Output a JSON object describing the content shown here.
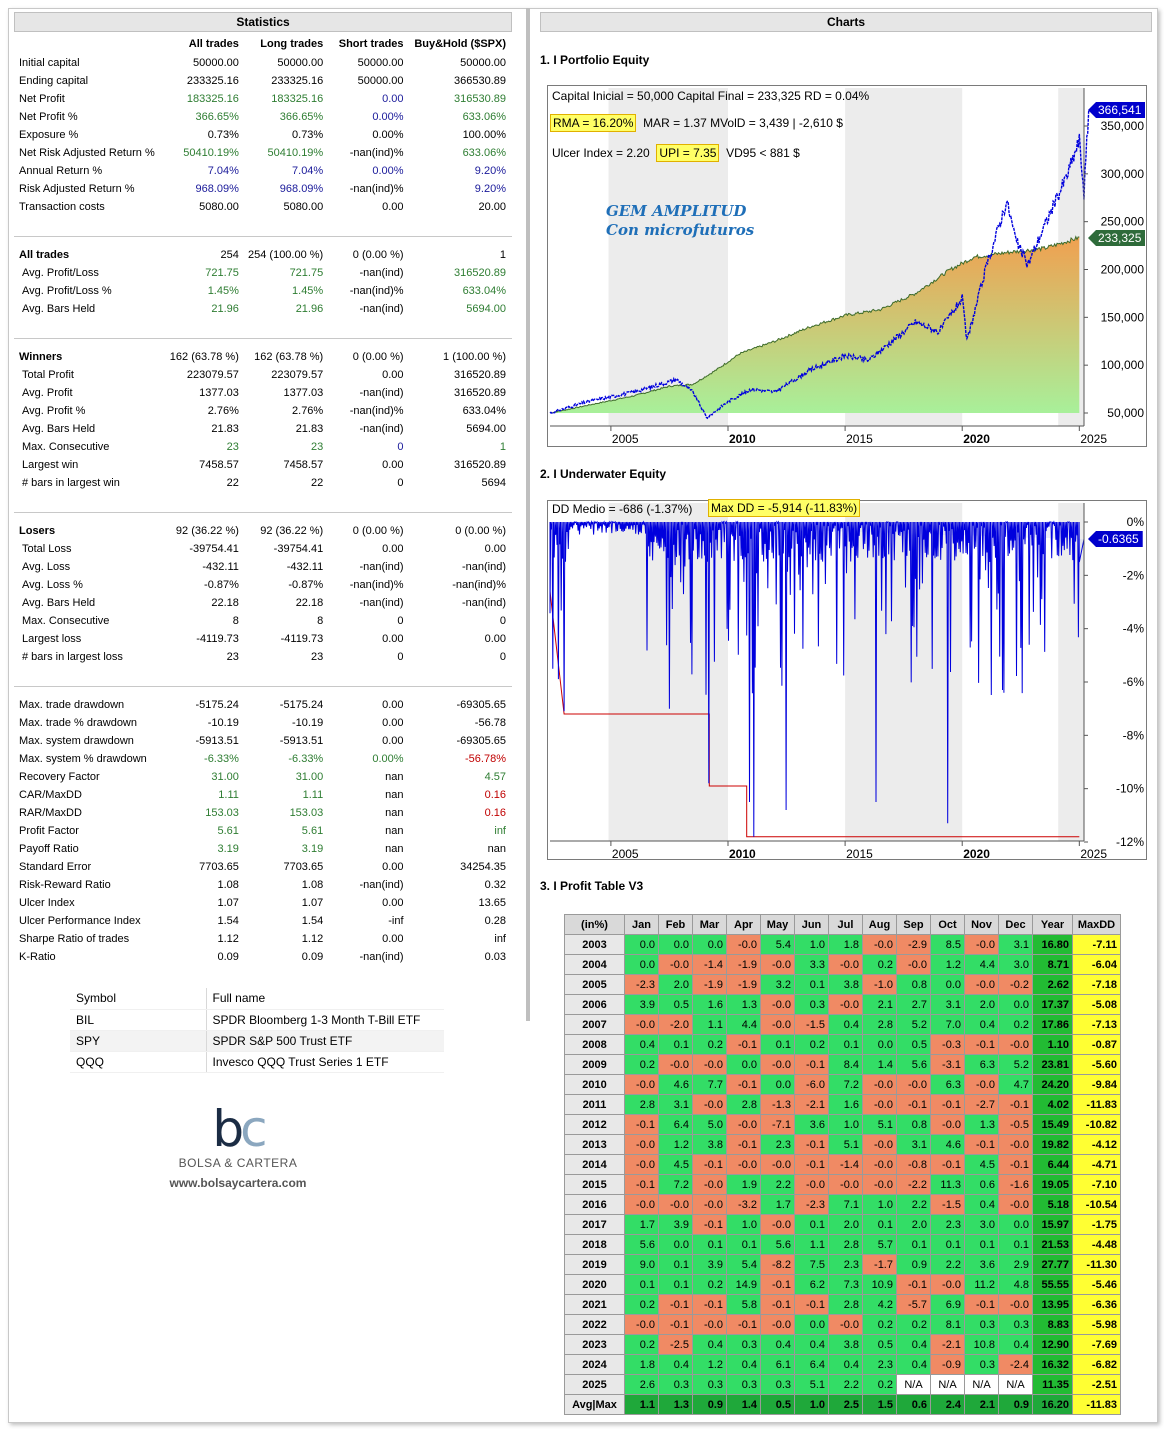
{
  "stats": {
    "title": "Statistics",
    "columns": [
      "All trades",
      "Long trades",
      "Short trades",
      "Buy&Hold ($SPX)"
    ],
    "block1": [
      {
        "label": "Initial capital",
        "v": [
          "50000.00",
          "50000.00",
          "50000.00",
          "50000.00"
        ],
        "c": [
          "",
          "",
          "",
          ""
        ]
      },
      {
        "label": "Ending capital",
        "v": [
          "233325.16",
          "233325.16",
          "50000.00",
          "366530.89"
        ],
        "c": [
          "",
          "",
          "",
          ""
        ]
      },
      {
        "label": "Net Profit",
        "v": [
          "183325.16",
          "183325.16",
          "0.00",
          "316530.89"
        ],
        "c": [
          "g",
          "g",
          "b",
          "g"
        ]
      },
      {
        "label": "Net Profit %",
        "v": [
          "366.65%",
          "366.65%",
          "0.00%",
          "633.06%"
        ],
        "c": [
          "g",
          "g",
          "b",
          "g"
        ]
      },
      {
        "label": "Exposure %",
        "v": [
          "0.73%",
          "0.73%",
          "0.00%",
          "100.00%"
        ],
        "c": [
          "",
          "",
          "",
          ""
        ]
      },
      {
        "label": "Net Risk Adjusted Return %",
        "v": [
          "50410.19%",
          "50410.19%",
          "-nan(ind)%",
          "633.06%"
        ],
        "c": [
          "g",
          "g",
          "",
          "g"
        ]
      },
      {
        "label": "Annual Return %",
        "v": [
          "7.04%",
          "7.04%",
          "0.00%",
          "9.20%"
        ],
        "c": [
          "b",
          "b",
          "b",
          "b"
        ]
      },
      {
        "label": "Risk Adjusted Return %",
        "v": [
          "968.09%",
          "968.09%",
          "-nan(ind)%",
          "9.20%"
        ],
        "c": [
          "b",
          "b",
          "",
          "b"
        ]
      },
      {
        "label": "Transaction costs",
        "v": [
          "5080.00",
          "5080.00",
          "0.00",
          "20.00"
        ],
        "c": [
          "",
          "",
          "",
          ""
        ]
      }
    ],
    "block2": [
      {
        "label": "All trades",
        "v": [
          "254",
          "254 (100.00 %)",
          "0 (0.00 %)",
          "1"
        ],
        "c": [
          "",
          "",
          "",
          ""
        ],
        "sec": true
      },
      {
        "label": "Avg. Profit/Loss",
        "v": [
          "721.75",
          "721.75",
          "-nan(ind)",
          "316520.89"
        ],
        "c": [
          "g",
          "g",
          "",
          "g"
        ]
      },
      {
        "label": "Avg. Profit/Loss %",
        "v": [
          "1.45%",
          "1.45%",
          "-nan(ind)%",
          "633.04%"
        ],
        "c": [
          "g",
          "g",
          "",
          "g"
        ]
      },
      {
        "label": "Avg. Bars Held",
        "v": [
          "21.96",
          "21.96",
          "-nan(ind)",
          "5694.00"
        ],
        "c": [
          "g",
          "g",
          "",
          "g"
        ]
      }
    ],
    "block3": [
      {
        "label": "Winners",
        "v": [
          "162 (63.78 %)",
          "162 (63.78 %)",
          "0 (0.00 %)",
          "1 (100.00 %)"
        ],
        "c": [
          "",
          "",
          "",
          ""
        ],
        "sec": true
      },
      {
        "label": "Total Profit",
        "v": [
          "223079.57",
          "223079.57",
          "0.00",
          "316520.89"
        ],
        "c": [
          "",
          "",
          "",
          ""
        ]
      },
      {
        "label": "Avg. Profit",
        "v": [
          "1377.03",
          "1377.03",
          "-nan(ind)",
          "316520.89"
        ],
        "c": [
          "",
          "",
          "",
          ""
        ]
      },
      {
        "label": "Avg. Profit %",
        "v": [
          "2.76%",
          "2.76%",
          "-nan(ind)%",
          "633.04%"
        ],
        "c": [
          "",
          "",
          "",
          ""
        ]
      },
      {
        "label": "Avg. Bars Held",
        "v": [
          "21.83",
          "21.83",
          "-nan(ind)",
          "5694.00"
        ],
        "c": [
          "",
          "",
          "",
          ""
        ]
      },
      {
        "label": "Max. Consecutive",
        "v": [
          "23",
          "23",
          "0",
          "1"
        ],
        "c": [
          "g",
          "g",
          "b",
          "g"
        ]
      },
      {
        "label": "Largest win",
        "v": [
          "7458.57",
          "7458.57",
          "0.00",
          "316520.89"
        ],
        "c": [
          "",
          "",
          "",
          ""
        ]
      },
      {
        "label": "# bars in largest win",
        "v": [
          "22",
          "22",
          "0",
          "5694"
        ],
        "c": [
          "",
          "",
          "",
          ""
        ]
      }
    ],
    "block4": [
      {
        "label": "Losers",
        "v": [
          "92 (36.22 %)",
          "92 (36.22 %)",
          "0 (0.00 %)",
          "0 (0.00 %)"
        ],
        "c": [
          "",
          "",
          "",
          ""
        ],
        "sec": true
      },
      {
        "label": "Total Loss",
        "v": [
          "-39754.41",
          "-39754.41",
          "0.00",
          "0.00"
        ],
        "c": [
          "",
          "",
          "",
          ""
        ]
      },
      {
        "label": "Avg. Loss",
        "v": [
          "-432.11",
          "-432.11",
          "-nan(ind)",
          "-nan(ind)"
        ],
        "c": [
          "",
          "",
          "",
          ""
        ]
      },
      {
        "label": "Avg. Loss %",
        "v": [
          "-0.87%",
          "-0.87%",
          "-nan(ind)%",
          "-nan(ind)%"
        ],
        "c": [
          "",
          "",
          "",
          ""
        ]
      },
      {
        "label": "Avg. Bars Held",
        "v": [
          "22.18",
          "22.18",
          "-nan(ind)",
          "-nan(ind)"
        ],
        "c": [
          "",
          "",
          "",
          ""
        ]
      },
      {
        "label": "Max. Consecutive",
        "v": [
          "8",
          "8",
          "0",
          "0"
        ],
        "c": [
          "",
          "",
          "",
          ""
        ]
      },
      {
        "label": "Largest loss",
        "v": [
          "-4119.73",
          "-4119.73",
          "0.00",
          "0.00"
        ],
        "c": [
          "",
          "",
          "",
          ""
        ]
      },
      {
        "label": "# bars in largest loss",
        "v": [
          "23",
          "23",
          "0",
          "0"
        ],
        "c": [
          "",
          "",
          "",
          ""
        ]
      }
    ],
    "block5": [
      {
        "label": "Max. trade drawdown",
        "v": [
          "-5175.24",
          "-5175.24",
          "0.00",
          "-69305.65"
        ],
        "c": [
          "",
          "",
          "",
          ""
        ]
      },
      {
        "label": "Max. trade % drawdown",
        "v": [
          "-10.19",
          "-10.19",
          "0.00",
          "-56.78"
        ],
        "c": [
          "",
          "",
          "",
          ""
        ]
      },
      {
        "label": "Max. system drawdown",
        "v": [
          "-5913.51",
          "-5913.51",
          "0.00",
          "-69305.65"
        ],
        "c": [
          "",
          "",
          "",
          ""
        ]
      },
      {
        "label": "Max. system % drawdown",
        "v": [
          "-6.33%",
          "-6.33%",
          "0.00%",
          "-56.78%"
        ],
        "c": [
          "g",
          "g",
          "g",
          "r"
        ]
      },
      {
        "label": "Recovery Factor",
        "v": [
          "31.00",
          "31.00",
          "nan",
          "4.57"
        ],
        "c": [
          "g",
          "g",
          "",
          "g"
        ]
      },
      {
        "label": "CAR/MaxDD",
        "v": [
          "1.11",
          "1.11",
          "nan",
          "0.16"
        ],
        "c": [
          "g",
          "g",
          "",
          "r"
        ]
      },
      {
        "label": "RAR/MaxDD",
        "v": [
          "153.03",
          "153.03",
          "nan",
          "0.16"
        ],
        "c": [
          "g",
          "g",
          "",
          "r"
        ]
      },
      {
        "label": "Profit Factor",
        "v": [
          "5.61",
          "5.61",
          "nan",
          "inf"
        ],
        "c": [
          "g",
          "g",
          "",
          "g"
        ]
      },
      {
        "label": "Payoff Ratio",
        "v": [
          "3.19",
          "3.19",
          "nan",
          "nan"
        ],
        "c": [
          "g",
          "g",
          "",
          ""
        ]
      },
      {
        "label": "Standard Error",
        "v": [
          "7703.65",
          "7703.65",
          "0.00",
          "34254.35"
        ],
        "c": [
          "",
          "",
          "",
          ""
        ]
      },
      {
        "label": "Risk-Reward Ratio",
        "v": [
          "1.08",
          "1.08",
          "-nan(ind)",
          "0.32"
        ],
        "c": [
          "",
          "",
          "",
          ""
        ]
      },
      {
        "label": "Ulcer Index",
        "v": [
          "1.07",
          "1.07",
          "0.00",
          "13.65"
        ],
        "c": [
          "",
          "",
          "",
          ""
        ]
      },
      {
        "label": "Ulcer Performance Index",
        "v": [
          "1.54",
          "1.54",
          "-inf",
          "0.28"
        ],
        "c": [
          "",
          "",
          "",
          ""
        ]
      },
      {
        "label": "Sharpe Ratio of trades",
        "v": [
          "1.12",
          "1.12",
          "0.00",
          "inf"
        ],
        "c": [
          "",
          "",
          "",
          ""
        ]
      },
      {
        "label": "K-Ratio",
        "v": [
          "0.09",
          "0.09",
          "-nan(ind)",
          "0.03"
        ],
        "c": [
          "",
          "",
          "",
          ""
        ]
      }
    ]
  },
  "symbols": {
    "header": [
      "Symbol",
      "Full name"
    ],
    "rows": [
      [
        "BIL",
        "SPDR Bloomberg 1-3 Month T-Bill ETF"
      ],
      [
        "SPY",
        "SPDR S&P 500 Trust ETF"
      ],
      [
        "QQQ",
        "Invesco QQQ Trust Series 1 ETF"
      ]
    ]
  },
  "logo": {
    "mark_b": "b",
    "mark_c": "c",
    "name": "BOLSA & CARTERA",
    "url": "www.bolsaycartera.com"
  },
  "charts": {
    "title": "Charts",
    "equity": {
      "heading": "1. I Portfolio Equity",
      "line1": "Capital Inicial = 50,000  Capital Final = 233,325  RD = 0.04%",
      "rma": "RMA = 16.20%",
      "line2_rest": "MAR = 1.37  MVolD = 3,439 | -2,610 $",
      "ulcer": "Ulcer Index = 2.20",
      "upi": "UPI = 7.35",
      "vd": "VD95 < 881 $",
      "brand1": "GEM AMPLITUD",
      "brand2": "Con microfuturos",
      "tag_bh": "366,541",
      "tag_eq": "233,325",
      "y_ticks": [
        "350,000",
        "300,000",
        "250,000",
        "200,000",
        "150,000",
        "100,000",
        "50,000"
      ],
      "x_ticks": [
        "2005",
        "2010",
        "2015",
        "2020",
        "2025"
      ],
      "colors": {
        "equity_fill_top": "#f0a050",
        "equity_fill_bottom": "#a8f09a",
        "bh_line": "#0000dd",
        "tag_bh": "#0000cc",
        "tag_eq": "#2e6b3a"
      }
    },
    "underwater": {
      "heading": "2. I Underwater Equity",
      "dd_medio": "DD Medio = -686 (-1.37%)",
      "max_dd": "Max DD = -5,914 (-11.83%)",
      "tag": "-0.6365",
      "y_ticks": [
        "0%",
        "-2%",
        "-4%",
        "-6%",
        "-8%",
        "-10%",
        "-12%"
      ],
      "x_ticks": [
        "2005",
        "2010",
        "2015",
        "2020",
        "2025"
      ]
    },
    "profit_table": {
      "heading": "3. I Profit Table V3",
      "header": [
        "(in%)",
        "Jan",
        "Feb",
        "Mar",
        "Apr",
        "May",
        "Jun",
        "Jul",
        "Aug",
        "Sep",
        "Oct",
        "Nov",
        "Dec",
        "Year",
        "MaxDD"
      ],
      "rows": [
        [
          "2003",
          "0.0",
          "0.0",
          "0.0",
          "-0.0",
          "5.4",
          "1.0",
          "1.8",
          "-0.0",
          "-2.9",
          "8.5",
          "-0.0",
          "3.1",
          "16.80",
          "-7.11"
        ],
        [
          "2004",
          "0.0",
          "-0.0",
          "-1.4",
          "-1.9",
          "-0.0",
          "3.3",
          "-0.0",
          "0.2",
          "-0.0",
          "1.2",
          "4.4",
          "3.0",
          "8.71",
          "-6.04"
        ],
        [
          "2005",
          "-2.3",
          "2.0",
          "-1.9",
          "-1.9",
          "3.2",
          "0.1",
          "3.8",
          "-1.0",
          "0.8",
          "0.0",
          "-0.0",
          "-0.2",
          "2.62",
          "-7.18"
        ],
        [
          "2006",
          "3.9",
          "0.5",
          "1.6",
          "1.3",
          "-0.0",
          "0.3",
          "-0.0",
          "2.1",
          "2.7",
          "3.1",
          "2.0",
          "0.0",
          "17.37",
          "-5.08"
        ],
        [
          "2007",
          "-0.0",
          "-2.0",
          "1.1",
          "4.4",
          "-0.0",
          "-1.5",
          "0.4",
          "2.8",
          "5.2",
          "7.0",
          "0.4",
          "0.2",
          "17.86",
          "-7.13"
        ],
        [
          "2008",
          "0.4",
          "0.1",
          "0.2",
          "-0.1",
          "0.1",
          "0.2",
          "0.1",
          "0.0",
          "0.5",
          "-0.3",
          "-0.1",
          "-0.0",
          "1.10",
          "-0.87"
        ],
        [
          "2009",
          "0.2",
          "-0.0",
          "-0.0",
          "0.0",
          "-0.0",
          "-0.1",
          "8.4",
          "1.4",
          "5.6",
          "-3.1",
          "6.3",
          "5.2",
          "23.81",
          "-5.60"
        ],
        [
          "2010",
          "-0.0",
          "4.6",
          "7.7",
          "-0.1",
          "0.0",
          "-6.0",
          "7.2",
          "-0.0",
          "-0.0",
          "6.3",
          "-0.0",
          "4.7",
          "24.20",
          "-9.84"
        ],
        [
          "2011",
          "2.8",
          "3.1",
          "-0.0",
          "2.8",
          "-1.3",
          "-2.1",
          "1.6",
          "-0.0",
          "-0.1",
          "-0.1",
          "-2.7",
          "-0.1",
          "4.02",
          "-11.83"
        ],
        [
          "2012",
          "-0.1",
          "6.4",
          "5.0",
          "-0.0",
          "-7.1",
          "3.6",
          "1.0",
          "5.1",
          "0.8",
          "-0.0",
          "1.3",
          "-0.5",
          "15.49",
          "-10.82"
        ],
        [
          "2013",
          "-0.0",
          "1.2",
          "3.8",
          "-0.1",
          "2.3",
          "-0.1",
          "5.1",
          "-0.0",
          "3.1",
          "4.6",
          "-0.1",
          "-0.0",
          "19.82",
          "-4.12"
        ],
        [
          "2014",
          "-0.0",
          "4.5",
          "-0.1",
          "-0.0",
          "-0.0",
          "-0.1",
          "-1.4",
          "-0.0",
          "-0.8",
          "-0.1",
          "4.5",
          "-0.1",
          "6.44",
          "-4.71"
        ],
        [
          "2015",
          "-0.1",
          "7.2",
          "-0.0",
          "1.9",
          "2.2",
          "-0.0",
          "-0.0",
          "-0.0",
          "-2.2",
          "11.3",
          "0.6",
          "-1.6",
          "19.05",
          "-7.10"
        ],
        [
          "2016",
          "-0.0",
          "-0.0",
          "-0.0",
          "-3.2",
          "1.7",
          "-2.3",
          "7.1",
          "1.0",
          "2.2",
          "-1.5",
          "0.4",
          "-0.0",
          "5.18",
          "-10.54"
        ],
        [
          "2017",
          "1.7",
          "3.9",
          "-0.1",
          "1.0",
          "-0.0",
          "0.1",
          "2.0",
          "0.1",
          "2.0",
          "2.3",
          "3.0",
          "0.0",
          "15.97",
          "-1.75"
        ],
        [
          "2018",
          "5.6",
          "0.0",
          "0.1",
          "0.1",
          "5.6",
          "1.1",
          "2.8",
          "5.7",
          "0.1",
          "0.1",
          "0.1",
          "0.1",
          "21.53",
          "-4.48"
        ],
        [
          "2019",
          "9.0",
          "0.1",
          "3.9",
          "5.4",
          "-8.2",
          "7.5",
          "2.3",
          "-1.7",
          "0.9",
          "2.2",
          "3.6",
          "2.9",
          "27.77",
          "-11.30"
        ],
        [
          "2020",
          "0.1",
          "0.1",
          "0.2",
          "14.9",
          "-0.1",
          "6.2",
          "7.3",
          "10.9",
          "-0.1",
          "-0.0",
          "11.2",
          "4.8",
          "55.55",
          "-5.46"
        ],
        [
          "2021",
          "0.2",
          "-0.1",
          "-0.1",
          "5.8",
          "-0.1",
          "-0.1",
          "2.8",
          "4.2",
          "-5.7",
          "6.9",
          "-0.1",
          "-0.0",
          "13.95",
          "-6.36"
        ],
        [
          "2022",
          "-0.0",
          "-0.1",
          "-0.0",
          "-0.1",
          "-0.0",
          "0.0",
          "-0.0",
          "0.2",
          "0.2",
          "8.1",
          "0.3",
          "0.3",
          "8.83",
          "-5.98"
        ],
        [
          "2023",
          "0.2",
          "-2.5",
          "0.4",
          "0.3",
          "0.4",
          "0.4",
          "3.8",
          "0.5",
          "0.4",
          "-2.1",
          "10.8",
          "0.4",
          "12.90",
          "-7.69"
        ],
        [
          "2024",
          "1.8",
          "0.4",
          "1.2",
          "0.4",
          "6.1",
          "6.4",
          "0.4",
          "2.3",
          "0.4",
          "-0.9",
          "0.3",
          "-2.4",
          "16.32",
          "-6.82"
        ],
        [
          "2025",
          "2.6",
          "0.3",
          "0.3",
          "0.3",
          "0.3",
          "5.1",
          "2.2",
          "0.2",
          "N/A",
          "N/A",
          "N/A",
          "N/A",
          "11.35",
          "-2.51"
        ]
      ],
      "avg": [
        "Avg|Max",
        "1.1",
        "1.3",
        "0.9",
        "1.4",
        "0.5",
        "1.0",
        "2.5",
        "1.5",
        "0.6",
        "2.4",
        "2.1",
        "0.9",
        "16.20",
        "-11.83"
      ]
    }
  }
}
